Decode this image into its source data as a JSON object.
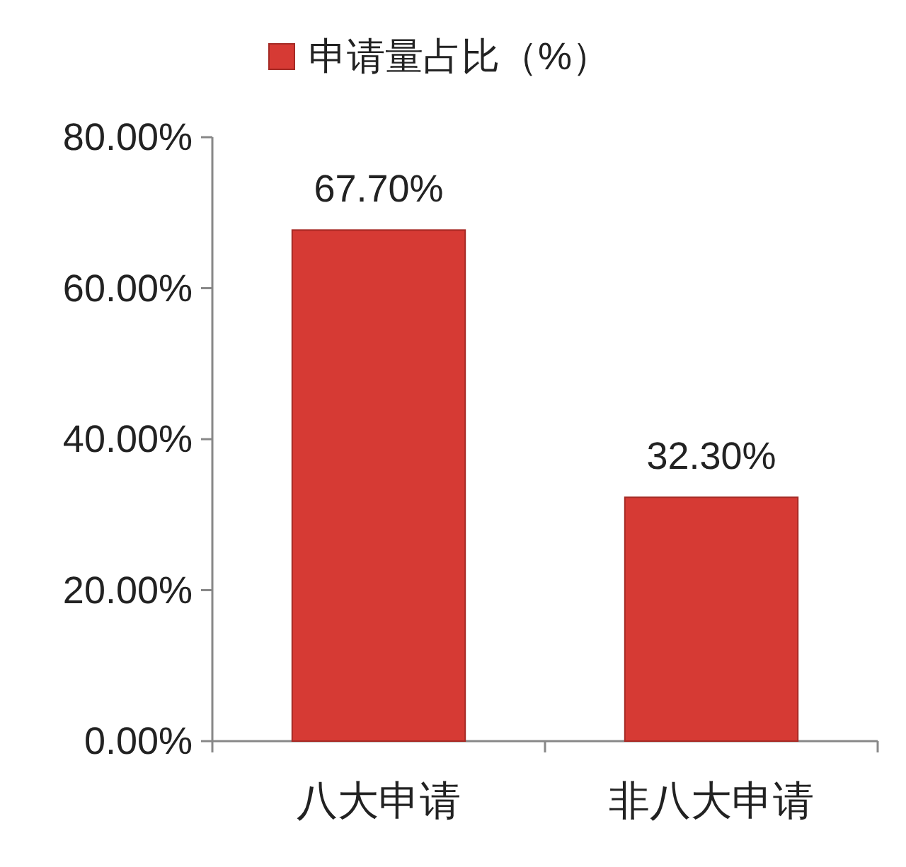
{
  "chart_data": {
    "type": "bar",
    "categories": [
      "八大申请",
      "非八大申请"
    ],
    "series": [
      {
        "name": "申请量占比（%）",
        "color": "#d63a34",
        "values": [
          67.7,
          32.3
        ],
        "value_labels": [
          "67.70%",
          "32.30%"
        ]
      }
    ],
    "ylim": [
      0,
      80
    ],
    "yticks": [
      {
        "value": 0,
        "label": "0.00%"
      },
      {
        "value": 20,
        "label": "20.00%"
      },
      {
        "value": 40,
        "label": "40.00%"
      },
      {
        "value": 60,
        "label": "60.00%"
      },
      {
        "value": 80,
        "label": "80.00%"
      }
    ],
    "grid": false,
    "legend": "top"
  }
}
